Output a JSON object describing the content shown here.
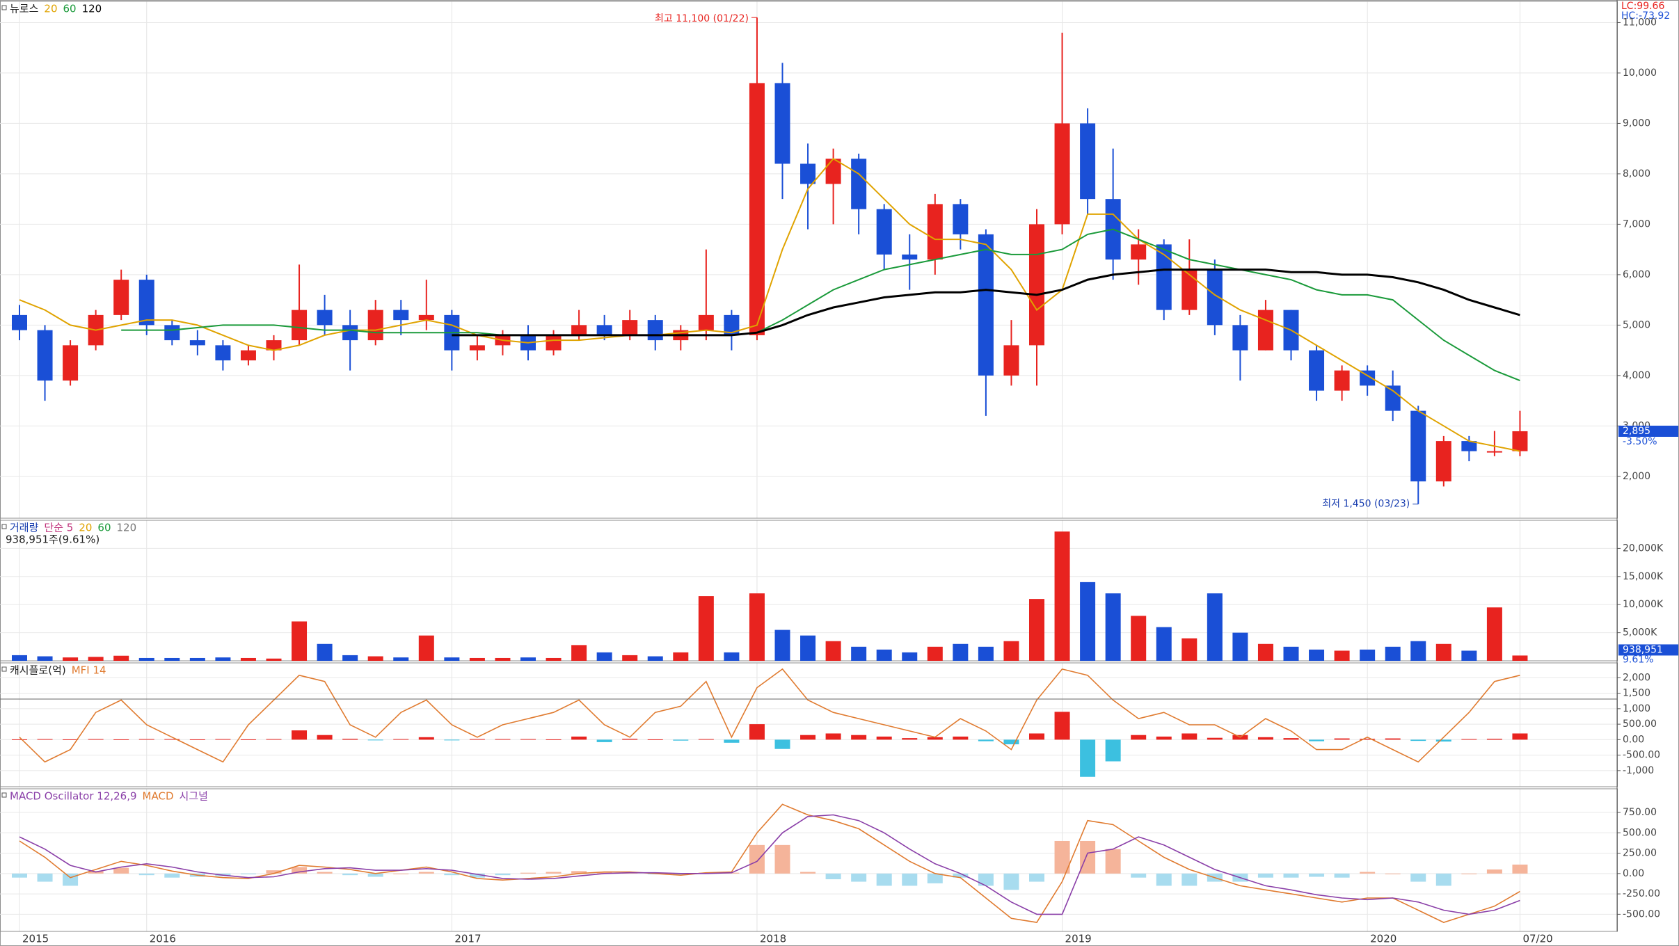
{
  "header": {
    "lc_label": "LC:99.66",
    "hc_label": "HC:-73.92"
  },
  "chart_data": [
    {
      "type": "candlestick",
      "title": "뉴로스",
      "categories": [
        "2015",
        null,
        null,
        null,
        null,
        "2016",
        null,
        null,
        null,
        null,
        null,
        null,
        null,
        null,
        null,
        null,
        null,
        "2017",
        null,
        null,
        null,
        null,
        null,
        null,
        null,
        null,
        null,
        null,
        null,
        "2018",
        null,
        null,
        null,
        null,
        null,
        null,
        null,
        null,
        null,
        null,
        null,
        "2019",
        null,
        null,
        null,
        null,
        null,
        null,
        null,
        null,
        null,
        null,
        null,
        "2020",
        null,
        null,
        null,
        null,
        null,
        "07/20"
      ],
      "open": [
        5200,
        4900,
        3900,
        4600,
        5200,
        5900,
        5000,
        4700,
        4600,
        4300,
        4500,
        4700,
        5300,
        5000,
        4700,
        5300,
        5100,
        5200,
        4500,
        4600,
        4800,
        4500,
        4800,
        5000,
        4800,
        5100,
        4700,
        4900,
        5200,
        4800,
        9800,
        8200,
        7800,
        8300,
        7300,
        6400,
        6300,
        7400,
        6800,
        4000,
        4600,
        7000,
        9000,
        7500,
        6300,
        6600,
        5300,
        6100,
        5000,
        4500,
        5300,
        4500,
        3700,
        4100,
        3800,
        3300,
        1900,
        2700,
        2500,
        2500
      ],
      "high": [
        5400,
        5000,
        4700,
        5300,
        6100,
        6000,
        5100,
        4900,
        4700,
        4600,
        4800,
        6200,
        5600,
        5300,
        5500,
        5500,
        5900,
        5300,
        4800,
        4900,
        5000,
        4900,
        5300,
        5200,
        5300,
        5200,
        5000,
        6500,
        5300,
        11100,
        10200,
        8600,
        8500,
        8400,
        7400,
        6800,
        7600,
        7500,
        6900,
        5100,
        7300,
        10800,
        9300,
        8500,
        6900,
        6700,
        6700,
        6300,
        5200,
        5500,
        5300,
        4600,
        4200,
        4200,
        4100,
        3400,
        2800,
        2800,
        2900,
        3300
      ],
      "low": [
        4700,
        3500,
        3800,
        4500,
        5100,
        4800,
        4600,
        4400,
        4100,
        4200,
        4300,
        4600,
        4800,
        4100,
        4600,
        4800,
        4900,
        4100,
        4300,
        4400,
        4300,
        4400,
        4700,
        4700,
        4700,
        4500,
        4500,
        4700,
        4500,
        4700,
        7500,
        6900,
        7000,
        6800,
        6100,
        5700,
        6000,
        6500,
        3200,
        3800,
        3800,
        6800,
        7200,
        5900,
        5800,
        5100,
        5200,
        4800,
        3900,
        4500,
        4300,
        3500,
        3500,
        3600,
        3100,
        1450,
        1800,
        2300,
        2400,
        2400
      ],
      "close": [
        4900,
        3900,
        4600,
        5200,
        5900,
        5000,
        4700,
        4600,
        4300,
        4500,
        4700,
        5300,
        5000,
        4700,
        5300,
        5100,
        5200,
        4500,
        4600,
        4800,
        4500,
        4800,
        5000,
        4800,
        5100,
        4700,
        4900,
        5200,
        4800,
        9800,
        8200,
        7800,
        8300,
        7300,
        6400,
        6300,
        7400,
        6800,
        4000,
        4600,
        7000,
        9000,
        7500,
        6300,
        6600,
        5300,
        6100,
        5000,
        4500,
        5300,
        4500,
        3700,
        4100,
        3800,
        3300,
        1900,
        2700,
        2500,
        2500,
        2895
      ],
      "up_color": "#e8231f",
      "down_color": "#1a4fd6",
      "series": [
        {
          "name": "20",
          "color": "#e0a300",
          "values": [
            5500,
            5300,
            5000,
            4900,
            5000,
            5100,
            5100,
            5000,
            4800,
            4600,
            4500,
            4600,
            4800,
            4900,
            4900,
            5000,
            5100,
            5000,
            4800,
            4700,
            4650,
            4700,
            4700,
            4750,
            4800,
            4800,
            4850,
            4900,
            4850,
            5000,
            6500,
            7700,
            8300,
            8000,
            7500,
            7000,
            6700,
            6700,
            6600,
            6100,
            5300,
            5700,
            7200,
            7200,
            6700,
            6400,
            6000,
            5600,
            5300,
            5100,
            4900,
            4600,
            4300,
            4000,
            3700,
            3300,
            3000,
            2700,
            2600,
            2500
          ]
        },
        {
          "name": "60",
          "color": "#1a9a3a",
          "values": [
            null,
            null,
            null,
            null,
            4900,
            4900,
            4900,
            4950,
            5000,
            5000,
            5000,
            4950,
            4900,
            4900,
            4850,
            4850,
            4850,
            4850,
            4850,
            4800,
            4800,
            4800,
            4800,
            4800,
            4800,
            4800,
            4800,
            4800,
            4800,
            4850,
            5100,
            5400,
            5700,
            5900,
            6100,
            6200,
            6300,
            6400,
            6500,
            6400,
            6400,
            6500,
            6800,
            6900,
            6700,
            6500,
            6300,
            6200,
            6100,
            6000,
            5900,
            5700,
            5600,
            5600,
            5500,
            5100,
            4700,
            4400,
            4100,
            3900
          ]
        },
        {
          "name": "120",
          "color": "#000000",
          "values": [
            null,
            null,
            null,
            null,
            null,
            null,
            null,
            null,
            null,
            null,
            null,
            null,
            null,
            null,
            null,
            null,
            null,
            4800,
            4800,
            4800,
            4800,
            4800,
            4800,
            4800,
            4800,
            4800,
            4800,
            4800,
            4800,
            4850,
            5000,
            5200,
            5350,
            5450,
            5550,
            5600,
            5650,
            5650,
            5700,
            5650,
            5600,
            5700,
            5900,
            6000,
            6050,
            6100,
            6100,
            6100,
            6100,
            6100,
            6050,
            6050,
            6000,
            6000,
            5950,
            5850,
            5700,
            5500,
            5350,
            5200
          ]
        }
      ],
      "ylim": [
        1170,
        11420
      ],
      "yticks": [
        {
          "value": 2000,
          "label": "2,000"
        },
        {
          "value": 3000,
          "label": "3,000"
        },
        {
          "value": 4000,
          "label": "4,000"
        },
        {
          "value": 5000,
          "label": "5,000"
        },
        {
          "value": 6000,
          "label": "6,000"
        },
        {
          "value": 7000,
          "label": "7,000"
        },
        {
          "value": 8000,
          "label": "8,000"
        },
        {
          "value": 9000,
          "label": "9,000"
        },
        {
          "value": 10000,
          "label": "10,000"
        },
        {
          "value": 11000,
          "label": "11,000"
        }
      ],
      "grid": true,
      "high_annotation": "최고 11,100 (01/22)",
      "low_annotation": "최저 1,450 (03/23)",
      "last_label": "2,895",
      "change_label": "-3.50%"
    },
    {
      "type": "bar",
      "title": "거래량",
      "title_color": "#1a3fb0",
      "legend": [
        {
          "text": "단순 5",
          "color": "#c0307a"
        },
        {
          "text": "20",
          "color": "#e0a300"
        },
        {
          "text": "60",
          "color": "#1a9a3a"
        },
        {
          "text": "120",
          "color": "#777777"
        }
      ],
      "subtitle": "938,951주(9.61%)",
      "values": [
        1000,
        800,
        600,
        700,
        900,
        500,
        500,
        500,
        600,
        500,
        400,
        7000,
        3000,
        1000,
        800,
        600,
        4500,
        600,
        500,
        500,
        600,
        500,
        2800,
        1500,
        1000,
        800,
        1500,
        11500,
        1500,
        12000,
        5500,
        4500,
        3500,
        2500,
        2000,
        1500,
        2500,
        3000,
        2500,
        3500,
        11000,
        23000,
        14000,
        12000,
        8000,
        6000,
        4000,
        12000,
        5000,
        3000,
        2500,
        2000,
        1800,
        2000,
        2500,
        3500,
        3000,
        1800,
        9500,
        938.951
      ],
      "ylim": [
        0,
        25000
      ],
      "yticks": [
        {
          "value": 5000,
          "label": "5,000K"
        },
        {
          "value": 10000,
          "label": "10,000K"
        },
        {
          "value": 15000,
          "label": "15,000K"
        },
        {
          "value": 20000,
          "label": "20,000K"
        }
      ],
      "last_label": "938,951",
      "pct_label": "9.61%"
    },
    {
      "type": "bar",
      "title": "캐시플로(억)",
      "pos_color": "#e8231f",
      "neg_color": "#3cc0e0",
      "values": [
        10,
        20,
        10,
        20,
        10,
        20,
        20,
        10,
        20,
        10,
        20,
        300,
        150,
        30,
        -20,
        20,
        80,
        -20,
        20,
        20,
        20,
        10,
        100,
        -80,
        30,
        10,
        -30,
        20,
        -100,
        500,
        -300,
        150,
        200,
        150,
        100,
        50,
        80,
        100,
        -50,
        -150,
        200,
        900,
        -1200,
        -700,
        150,
        100,
        200,
        60,
        150,
        80,
        50,
        -50,
        40,
        30,
        40,
        -40,
        -60,
        20,
        30,
        200
      ],
      "series": [
        {
          "name": "MFI 14",
          "color": "#e07b30",
          "axis": "y2",
          "values": [
            40,
            20,
            30,
            60,
            70,
            50,
            40,
            30,
            20,
            50,
            70,
            90,
            85,
            50,
            40,
            60,
            70,
            50,
            40,
            50,
            55,
            60,
            70,
            50,
            40,
            60,
            65,
            85,
            40,
            80,
            95,
            70,
            60,
            55,
            50,
            45,
            40,
            55,
            45,
            30,
            70,
            95,
            90,
            70,
            55,
            60,
            50,
            50,
            40,
            55,
            45,
            30,
            30,
            40,
            30,
            20,
            40,
            60,
            85,
            90
          ]
        }
      ],
      "ylim": [
        -1520,
        2480
      ],
      "y2lim": [
        0,
        100
      ],
      "yticks": [
        {
          "value": -1000,
          "label": "-1,000"
        },
        {
          "value": -500,
          "label": "-500.00"
        },
        {
          "value": 0,
          "label": "0.00"
        },
        {
          "value": 500,
          "label": "500.00"
        },
        {
          "value": 1000,
          "label": "1,000"
        },
        {
          "value": 1500,
          "label": "1,500"
        },
        {
          "value": 2000,
          "label": "2,000"
        }
      ]
    },
    {
      "type": "bar",
      "title": "MACD Oscillator 12,26,9",
      "title_color": "#8a3fa8",
      "pos_color": "#f5b49a",
      "neg_color": "#a8dcef",
      "values": [
        -50,
        -100,
        -150,
        30,
        70,
        -20,
        -50,
        -40,
        -30,
        -10,
        40,
        80,
        20,
        -20,
        -40,
        0,
        20,
        -20,
        -50,
        -20,
        10,
        20,
        30,
        20,
        10,
        -10,
        -20,
        10,
        10,
        350,
        350,
        20,
        -70,
        -100,
        -150,
        -150,
        -120,
        -50,
        -150,
        -200,
        -100,
        400,
        400,
        300,
        -50,
        -150,
        -150,
        -100,
        -100,
        -50,
        -50,
        -40,
        -50,
        20,
        0,
        -100,
        -150,
        0,
        50,
        110
      ],
      "series": [
        {
          "name": "MACD",
          "color": "#e07b30",
          "values": [
            400,
            200,
            -50,
            50,
            150,
            100,
            30,
            -20,
            -50,
            -60,
            0,
            100,
            80,
            50,
            0,
            40,
            80,
            20,
            -60,
            -80,
            -60,
            -40,
            0,
            20,
            20,
            0,
            -20,
            10,
            20,
            500,
            850,
            720,
            650,
            550,
            350,
            150,
            0,
            -50,
            -300,
            -550,
            -600,
            -100,
            650,
            600,
            400,
            200,
            50,
            -50,
            -150,
            -200,
            -250,
            -300,
            -350,
            -300,
            -300,
            -450,
            -600,
            -500,
            -400,
            -220
          ]
        },
        {
          "name": "시그널",
          "color": "#8a3fa8",
          "values": [
            450,
            300,
            100,
            20,
            80,
            120,
            80,
            20,
            -20,
            -50,
            -40,
            20,
            60,
            70,
            40,
            40,
            60,
            40,
            -10,
            -60,
            -70,
            -60,
            -30,
            0,
            10,
            10,
            0,
            0,
            10,
            150,
            500,
            700,
            720,
            650,
            500,
            300,
            120,
            0,
            -150,
            -350,
            -500,
            -500,
            250,
            300,
            450,
            350,
            200,
            50,
            -50,
            -150,
            -200,
            -260,
            -300,
            -320,
            -300,
            -350,
            -450,
            -500,
            -450,
            -330
          ]
        }
      ],
      "ylim": [
        -710,
        1040
      ],
      "yticks": [
        {
          "value": -500,
          "label": "-500.00"
        },
        {
          "value": -250,
          "label": "-250.00"
        },
        {
          "value": 0,
          "label": "0.00"
        },
        {
          "value": 250,
          "label": "250.00"
        },
        {
          "value": 500,
          "label": "500.00"
        },
        {
          "value": 750,
          "label": "750.00"
        }
      ]
    }
  ]
}
